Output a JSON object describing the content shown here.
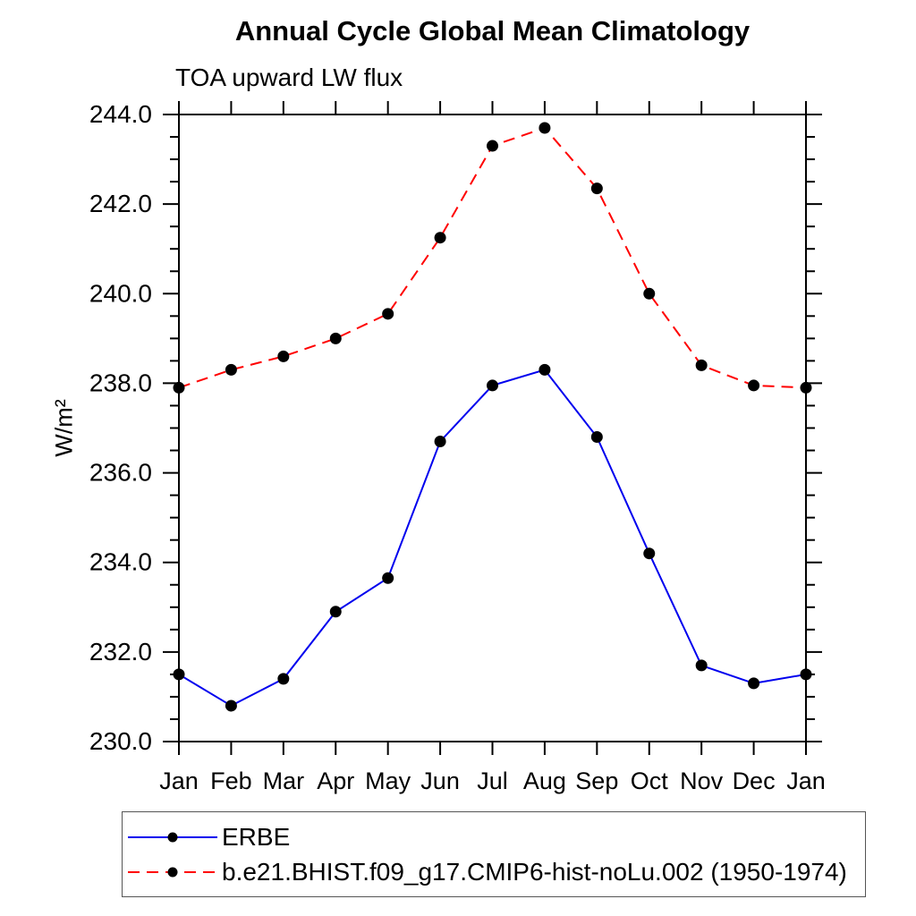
{
  "page": {
    "title": "Annual Cycle Global Mean Climatology",
    "subtitle": "TOA upward LW flux",
    "ylabel": "W/m²"
  },
  "chart_data": {
    "type": "line",
    "title": "Annual Cycle Global Mean Climatology",
    "subtitle": "TOA upward LW flux",
    "ylabel": "W/m²",
    "categories": [
      "Jan",
      "Feb",
      "Mar",
      "Apr",
      "May",
      "Jun",
      "Jul",
      "Aug",
      "Sep",
      "Oct",
      "Nov",
      "Dec",
      "Jan"
    ],
    "ylim": [
      230.0,
      244.0
    ],
    "y_major_tick_labels": [
      "230.0",
      "232.0",
      "234.0",
      "236.0",
      "238.0",
      "240.0",
      "242.0",
      "244.0"
    ],
    "y_major_step": 2.0,
    "y_minor_step": 0.5,
    "grid": false,
    "ticks": "outward-all-sides",
    "legend_position": "bottom-left",
    "marker": {
      "shape": "filled-circle",
      "color": "#000000"
    },
    "series": [
      {
        "name": "ERBE",
        "color": "#0000ee",
        "style": "solid",
        "values": [
          231.5,
          230.8,
          231.4,
          232.9,
          233.65,
          236.7,
          237.95,
          238.3,
          236.8,
          234.2,
          231.7,
          231.3,
          231.5
        ]
      },
      {
        "name": "b.e21.BHIST.f09_g17.CMIP6-hist-noLu.002 (1950-1974)",
        "color": "#ff0000",
        "style": "dashed",
        "values": [
          237.9,
          238.3,
          238.6,
          239.0,
          239.55,
          241.25,
          243.3,
          243.7,
          242.35,
          240.0,
          238.4,
          237.95,
          237.9
        ]
      }
    ]
  }
}
